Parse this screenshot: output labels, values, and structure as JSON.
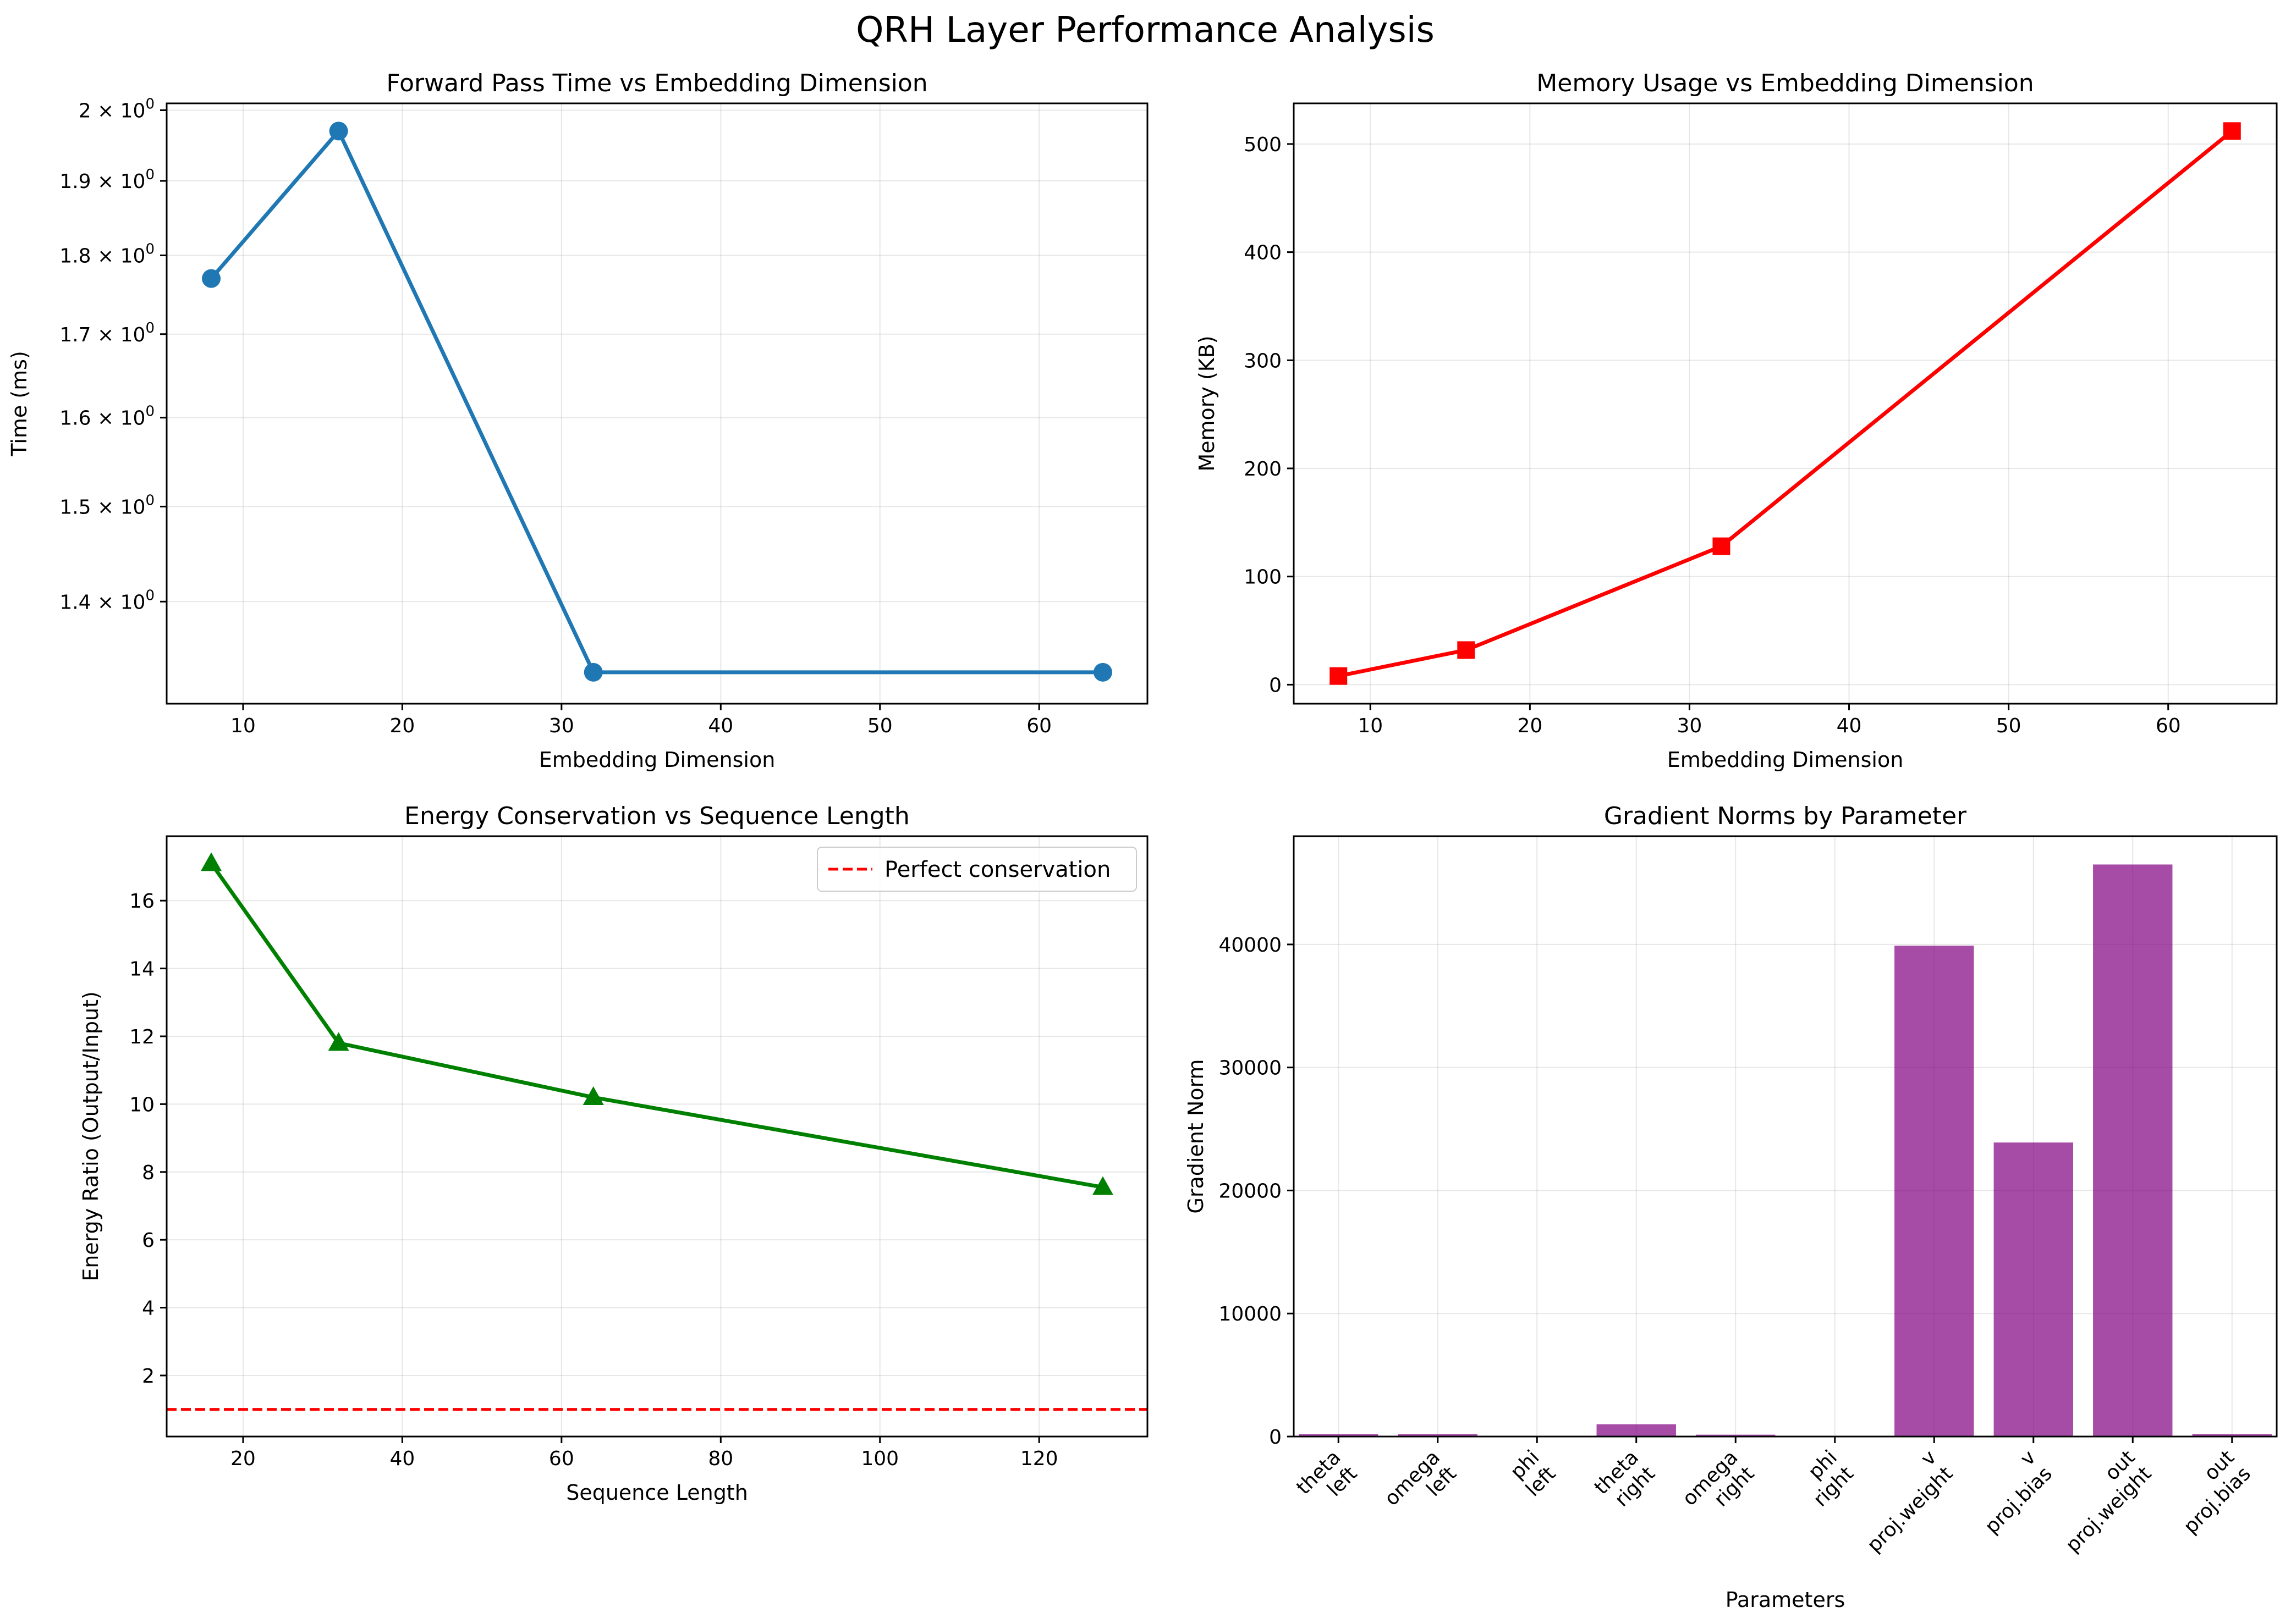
{
  "figure": {
    "title": "QRH Layer Performance Analysis"
  },
  "colors": {
    "blue": "#1f77b4",
    "red": "#ff0000",
    "green": "#008000",
    "purple": "#800080",
    "grid": "#b0b0b0"
  },
  "chart_data": [
    {
      "type": "line",
      "title": "Forward Pass Time vs Embedding Dimension",
      "xlabel": "Embedding Dimension",
      "ylabel": "Time (ms)",
      "yscale": "log",
      "grid": true,
      "marker": "circle",
      "color": "#1f77b4",
      "x": [
        8,
        16,
        32,
        64
      ],
      "y": [
        1.77,
        1.97,
        1.33,
        1.33
      ],
      "xlim": [
        5.2,
        66.8
      ],
      "ylim": [
        1.3,
        2.01
      ],
      "xticks": [
        10,
        20,
        30,
        40,
        50,
        60
      ],
      "yticks": [
        {
          "value": 1.4,
          "mant": "1.4",
          "exp": "0"
        },
        {
          "value": 1.5,
          "mant": "1.5",
          "exp": "0"
        },
        {
          "value": 1.6,
          "mant": "1.6",
          "exp": "0"
        },
        {
          "value": 1.7,
          "mant": "1.7",
          "exp": "0"
        },
        {
          "value": 1.8,
          "mant": "1.8",
          "exp": "0"
        },
        {
          "value": 1.9,
          "mant": "1.9",
          "exp": "0"
        },
        {
          "value": 2.0,
          "mant": "2",
          "exp": "0"
        }
      ]
    },
    {
      "type": "line",
      "title": "Memory Usage vs Embedding Dimension",
      "xlabel": "Embedding Dimension",
      "ylabel": "Memory (KB)",
      "grid": true,
      "marker": "square",
      "color": "#ff0000",
      "x": [
        8,
        16,
        32,
        64
      ],
      "y": [
        8,
        32,
        128,
        512
      ],
      "xlim": [
        5.2,
        66.8
      ],
      "ylim": [
        -17.6,
        537.6
      ],
      "xticks": [
        10,
        20,
        30,
        40,
        50,
        60
      ],
      "yticks": [
        0,
        100,
        200,
        300,
        400,
        500
      ]
    },
    {
      "type": "line",
      "title": "Energy Conservation vs Sequence Length",
      "xlabel": "Sequence Length",
      "ylabel": "Energy Ratio (Output/Input)",
      "grid": true,
      "marker": "triangle",
      "color": "#008000",
      "x": [
        16,
        32,
        64,
        128
      ],
      "y": [
        17.1,
        11.8,
        10.2,
        7.55
      ],
      "xlim": [
        10.4,
        133.6
      ],
      "ylim": [
        0.2,
        17.9
      ],
      "xticks": [
        20,
        40,
        60,
        80,
        100,
        120
      ],
      "yticks": [
        2,
        4,
        6,
        8,
        10,
        12,
        14,
        16
      ],
      "hline": {
        "value": 1.0,
        "label": "Perfect conservation"
      },
      "legend": "upper right"
    },
    {
      "type": "bar",
      "title": "Gradient Norms by Parameter",
      "xlabel": "Parameters",
      "ylabel": "Gradient Norm",
      "grid": true,
      "color": "#800080",
      "categories": [
        [
          "theta",
          "left"
        ],
        [
          "omega",
          "left"
        ],
        [
          "phi",
          "left"
        ],
        [
          "theta",
          "right"
        ],
        [
          "omega",
          "right"
        ],
        [
          "phi",
          "right"
        ],
        [
          "v",
          "proj.weight"
        ],
        [
          "v",
          "proj.bias"
        ],
        [
          "out",
          "proj.weight"
        ],
        [
          "out",
          "proj.bias"
        ]
      ],
      "values": [
        200,
        200,
        10,
        1000,
        150,
        10,
        39900,
        23900,
        46500,
        200
      ],
      "xlim": [
        -0.9,
        18.9
      ],
      "ylim": [
        0,
        48800
      ],
      "yticks": [
        0,
        10000,
        20000,
        30000,
        40000
      ]
    }
  ]
}
